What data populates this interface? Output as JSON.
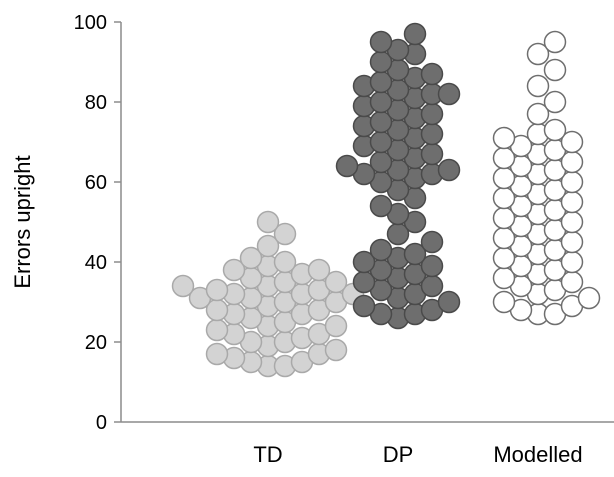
{
  "chart_data": {
    "type": "scatter",
    "subtype": "beeswarm",
    "title": "",
    "xlabel": "",
    "ylabel": "Errors upright",
    "ylim": [
      0,
      100
    ],
    "yticks": [
      0,
      20,
      40,
      60,
      80,
      100
    ],
    "ytick_labels": [
      "0",
      "20",
      "40",
      "60",
      "80",
      "100"
    ],
    "grid": false,
    "legend": "none",
    "categories": [
      "TD",
      "DP",
      "Modelled"
    ],
    "series": [
      {
        "category": "TD",
        "fill": "#d3d3d3",
        "stroke": "#a9a9a9",
        "values": [
          50,
          47,
          44,
          41,
          40,
          39,
          38,
          38,
          37,
          36,
          35,
          35,
          34,
          34,
          33,
          33,
          32,
          32,
          32,
          31,
          31,
          30,
          30,
          29,
          28,
          28,
          27,
          27,
          26,
          25,
          24,
          24,
          23,
          22,
          22,
          21,
          20,
          20,
          19,
          18,
          17,
          17,
          16,
          15,
          15,
          14,
          14
        ]
      },
      {
        "category": "DP",
        "fill": "#6e6e6e",
        "stroke": "#4a4a4a",
        "values": [
          97,
          95,
          93,
          92,
          90,
          88,
          87,
          86,
          85,
          84,
          83,
          82,
          82,
          81,
          80,
          79,
          78,
          77,
          76,
          75,
          74,
          73,
          72,
          71,
          70,
          69,
          68,
          67,
          66,
          65,
          64,
          63,
          63,
          62,
          62,
          61,
          60,
          58,
          56,
          54,
          52,
          50,
          47,
          45,
          43,
          42,
          41,
          40,
          39,
          38,
          37,
          36,
          35,
          34,
          33,
          32,
          31,
          30,
          29,
          28,
          27,
          27,
          26
        ]
      },
      {
        "category": "Modelled",
        "fill": "#ffffff",
        "stroke": "#6e6e6e",
        "values": [
          95,
          92,
          88,
          84,
          80,
          77,
          73,
          72,
          71,
          70,
          69,
          68,
          67,
          66,
          65,
          64,
          63,
          62,
          61,
          60,
          59,
          58,
          57,
          56,
          55,
          54,
          53,
          52,
          51,
          50,
          49,
          48,
          47,
          46,
          45,
          44,
          43,
          42,
          41,
          40,
          39,
          38,
          37,
          36,
          35,
          34,
          33,
          32,
          31,
          30,
          29,
          28,
          27,
          27
        ]
      }
    ]
  }
}
